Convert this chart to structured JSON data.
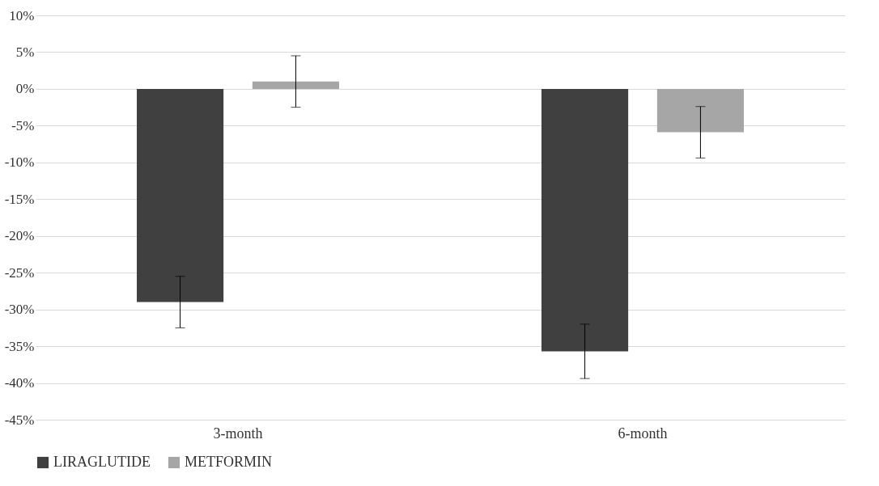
{
  "chart_data": {
    "type": "bar",
    "categories": [
      "3-month",
      "6-month"
    ],
    "series": [
      {
        "name": "LIRAGLUTIDE",
        "color": "#404040",
        "values": [
          -29,
          -35.7
        ],
        "errors": [
          3.5,
          3.7
        ]
      },
      {
        "name": "METFORMIN",
        "color": "#a6a6a6",
        "values": [
          1,
          -5.9
        ],
        "errors": [
          3.5,
          3.5
        ]
      }
    ],
    "ylim": [
      -45,
      10
    ],
    "yticks": [
      {
        "value": 10,
        "label": "10%"
      },
      {
        "value": 5,
        "label": "5%"
      },
      {
        "value": 0,
        "label": "0%"
      },
      {
        "value": -5,
        "label": "-5%"
      },
      {
        "value": -10,
        "label": "-10%"
      },
      {
        "value": -15,
        "label": "-15%"
      },
      {
        "value": -20,
        "label": "-20%"
      },
      {
        "value": -25,
        "label": "-25%"
      },
      {
        "value": -30,
        "label": "-30%"
      },
      {
        "value": -35,
        "label": "-35%"
      },
      {
        "value": -40,
        "label": "-40%"
      },
      {
        "value": -45,
        "label": "-45%"
      }
    ],
    "grid": "y",
    "legend": "bottom"
  }
}
